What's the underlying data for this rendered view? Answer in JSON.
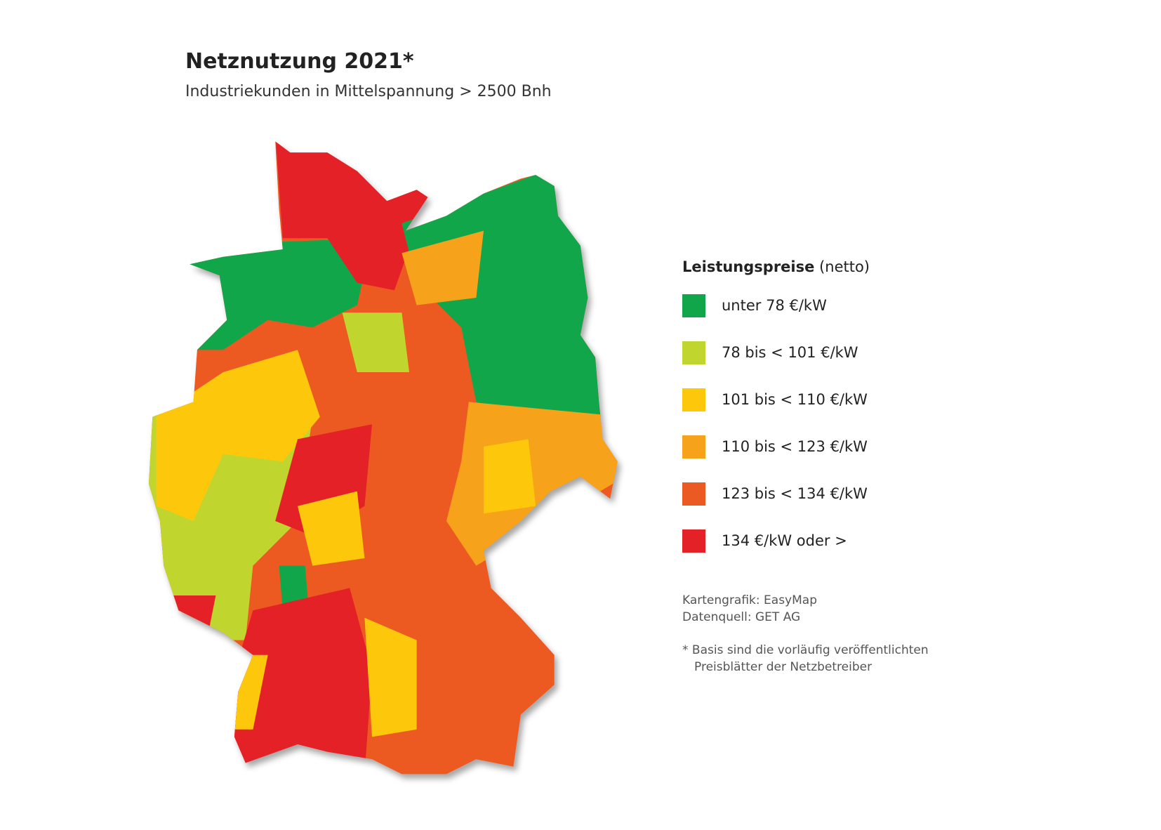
{
  "header": {
    "title": "Netznutzung 2021*",
    "subtitle": "Industriekunden in Mittelspannung > 2500 Bnh"
  },
  "legend": {
    "title": "Leistungspreise",
    "title_suffix": "(netto)",
    "items": [
      {
        "label": "unter 78 €/kW",
        "color": "#12a64b"
      },
      {
        "label": "78 bis < 101 €/kW",
        "color": "#c0d62e"
      },
      {
        "label": "101 bis < 110 €/kW",
        "color": "#fdc70c"
      },
      {
        "label": "110 bis < 123 €/kW",
        "color": "#f7a21b"
      },
      {
        "label": "123 bis < 134 €/kW",
        "color": "#ec5a24"
      },
      {
        "label": "134 €/kW oder >",
        "color": "#e42127"
      }
    ]
  },
  "credits": [
    "Kartengrafik: EasyMap",
    "Datenquell: GET AG"
  ],
  "footnote": [
    "* Basis sind die vorläufig veröffentlichten",
    "Preisblätter der Netzbetreiber"
  ]
}
